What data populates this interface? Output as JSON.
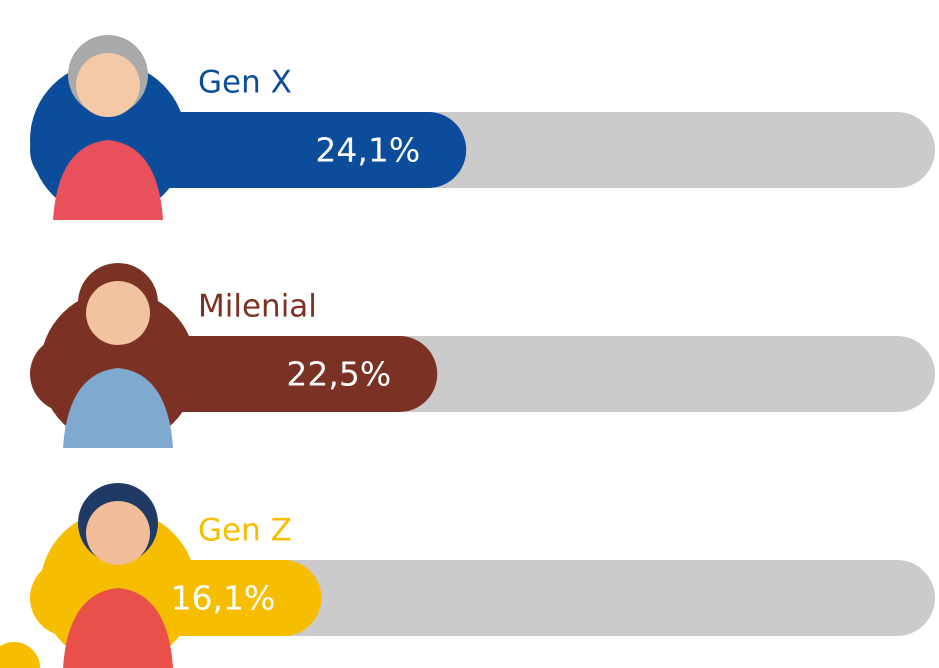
{
  "chart_data": {
    "type": "bar",
    "categories": [
      "Gen X",
      "Milenial",
      "Gen Z"
    ],
    "values": [
      24.1,
      22.5,
      16.1
    ],
    "value_labels": [
      "24,1%",
      "22,5%",
      "16,1%"
    ],
    "colors": [
      "#0b4d9b",
      "#7b3123",
      "#f7bd00"
    ],
    "xlim": [
      0,
      50
    ]
  }
}
